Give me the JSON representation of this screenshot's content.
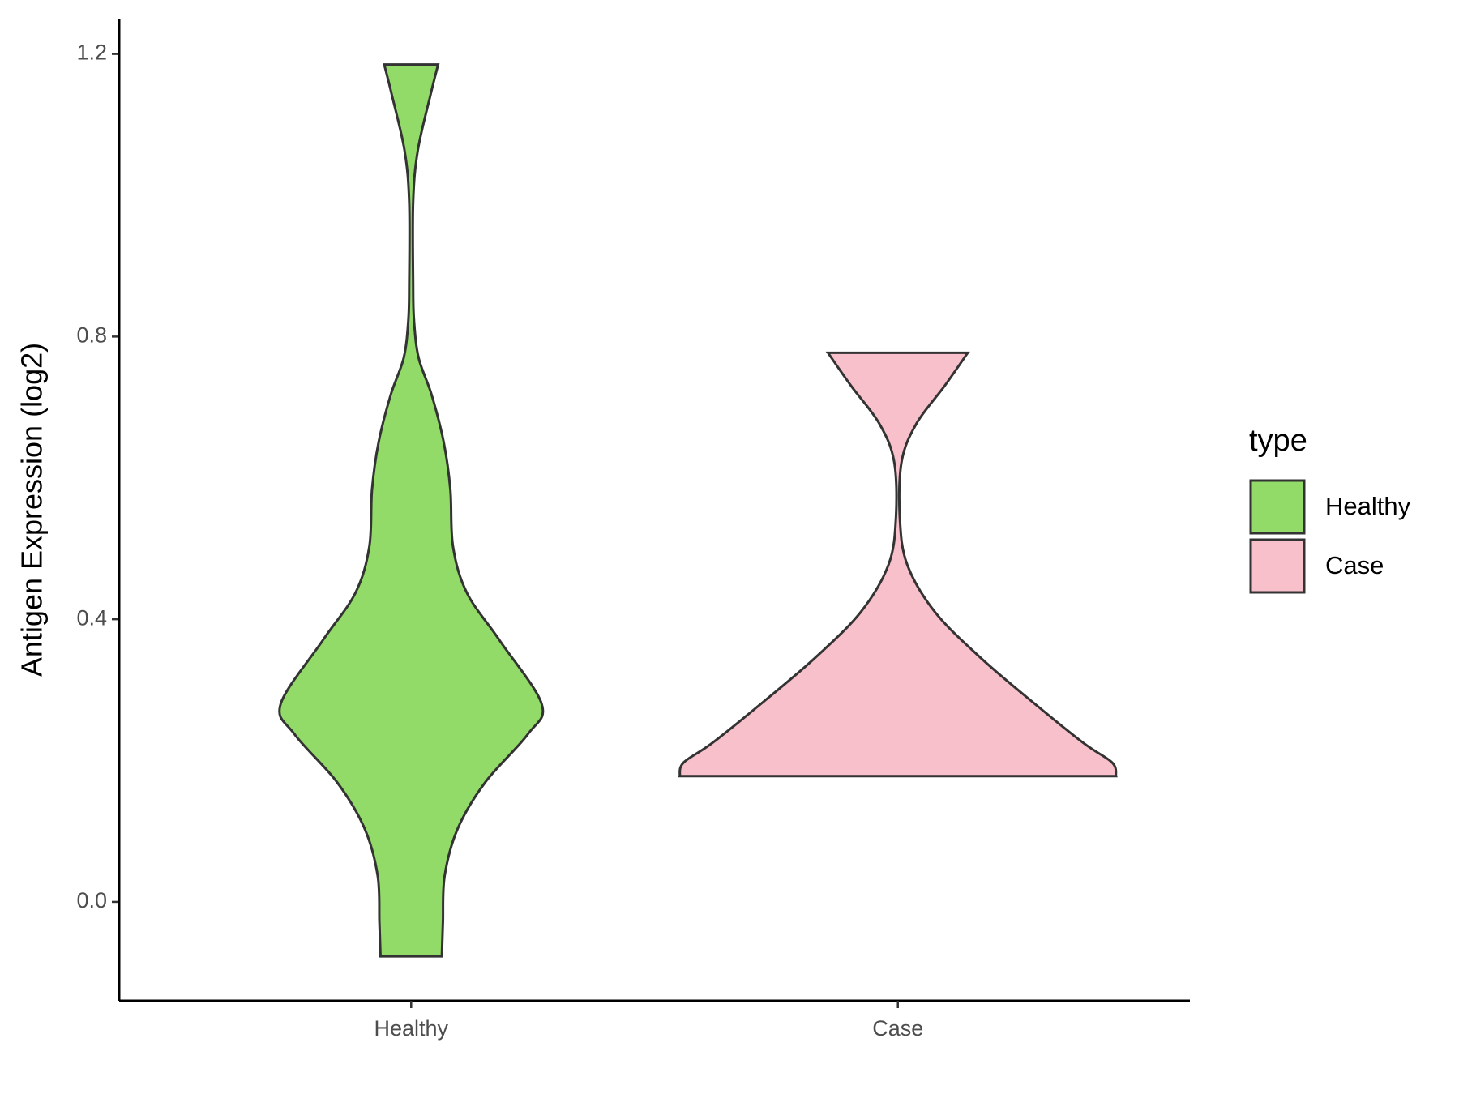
{
  "chart_data": {
    "type": "violin",
    "y_label": "Antigen Expression (log2)",
    "categories": [
      "Healthy",
      "Case"
    ],
    "legend_title": "type",
    "legend_position": "right",
    "ylim": [
      -0.14,
      1.25
    ],
    "yticks": [
      {
        "value": 0,
        "label": "0.0"
      },
      0.4,
      0.8,
      1.2
    ],
    "series": [
      {
        "name": "Healthy",
        "color": "#93db69",
        "y": [
          1.185,
          1.143,
          1.063,
          0.99,
          0.876,
          0.823,
          0.77,
          0.717,
          0.65,
          0.583,
          0.503,
          0.437,
          0.37,
          0.28,
          0.237,
          0.17,
          0.104,
          0.037,
          -0.029,
          -0.077
        ],
        "density": [
          0.123,
          0.089,
          0.03,
          0.009,
          0.009,
          0.013,
          0.034,
          0.094,
          0.149,
          0.179,
          0.191,
          0.255,
          0.404,
          0.596,
          0.532,
          0.34,
          0.213,
          0.153,
          0.145,
          0.14
        ]
      },
      {
        "name": "Case",
        "color": "#f8c0cb",
        "y": [
          0.777,
          0.73,
          0.677,
          0.623,
          0.543,
          0.477,
          0.41,
          0.344,
          0.277,
          0.224,
          0.197,
          0.178
        ],
        "density": [
          0.319,
          0.213,
          0.085,
          0.017,
          0.009,
          0.043,
          0.17,
          0.383,
          0.638,
          0.851,
          0.979,
          0.996
        ]
      }
    ]
  }
}
